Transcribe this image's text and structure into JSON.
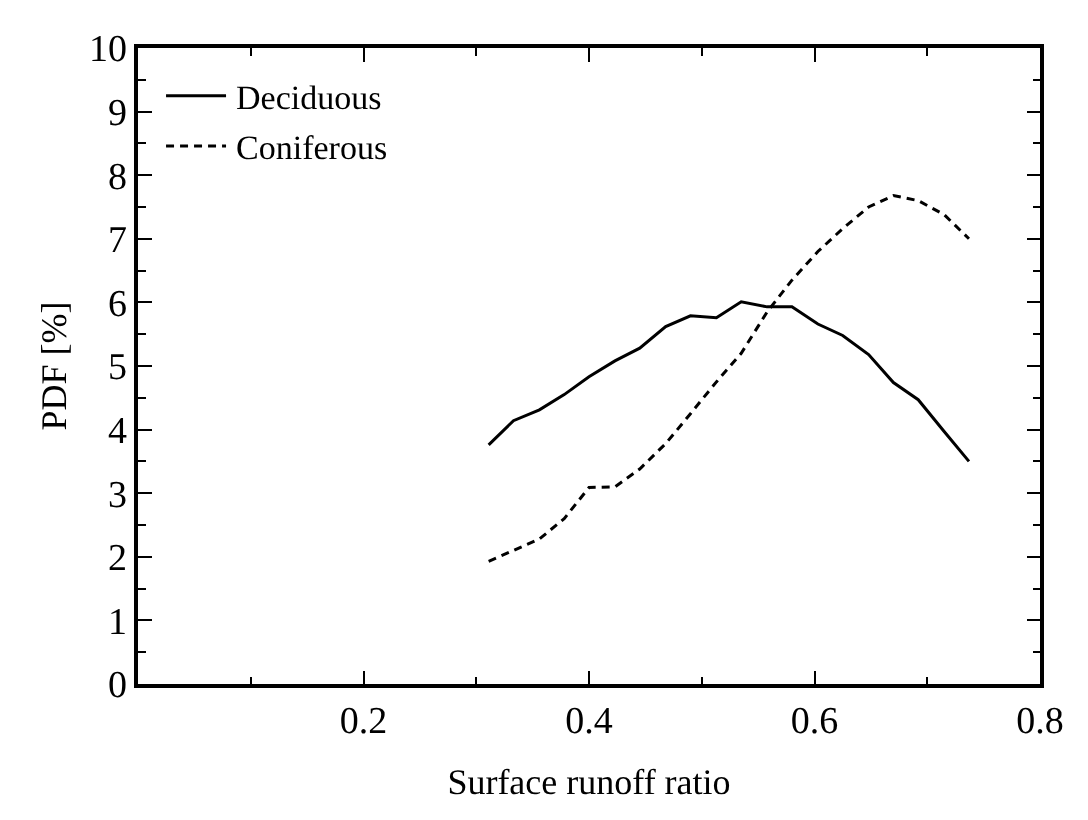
{
  "chart_data": {
    "type": "line",
    "xlabel": "Surface runoff ratio",
    "ylabel": "PDF [%]",
    "x": [
      0.311,
      0.333,
      0.356,
      0.378,
      0.4,
      0.423,
      0.445,
      0.468,
      0.49,
      0.513,
      0.535,
      0.558,
      0.58,
      0.603,
      0.625,
      0.648,
      0.67,
      0.692,
      0.715,
      0.737
    ],
    "series": [
      {
        "name": "Deciduous",
        "color": "#000000",
        "line_style": "solid",
        "values": [
          3.76,
          4.14,
          4.31,
          4.55,
          4.83,
          5.08,
          5.28,
          5.62,
          5.79,
          5.76,
          6.01,
          5.93,
          5.93,
          5.66,
          5.48,
          5.18,
          4.74,
          4.47,
          3.97,
          3.5
        ]
      },
      {
        "name": "Coniferous",
        "color": "#000000",
        "line_style": "dashed",
        "values": [
          1.93,
          2.1,
          2.28,
          2.6,
          3.09,
          3.1,
          3.38,
          3.78,
          4.25,
          4.75,
          5.2,
          5.85,
          6.35,
          6.8,
          7.16,
          7.5,
          7.68,
          7.6,
          7.38,
          7.0
        ]
      }
    ],
    "xlim": [
      0,
      0.8
    ],
    "xticks": [
      0.2,
      0.4,
      0.6,
      0.8
    ],
    "ylim": [
      0,
      10
    ],
    "yticks": [
      0,
      1,
      2,
      3,
      4,
      5,
      6,
      7,
      8,
      9,
      10
    ],
    "legend": "top left",
    "marker": "none"
  }
}
